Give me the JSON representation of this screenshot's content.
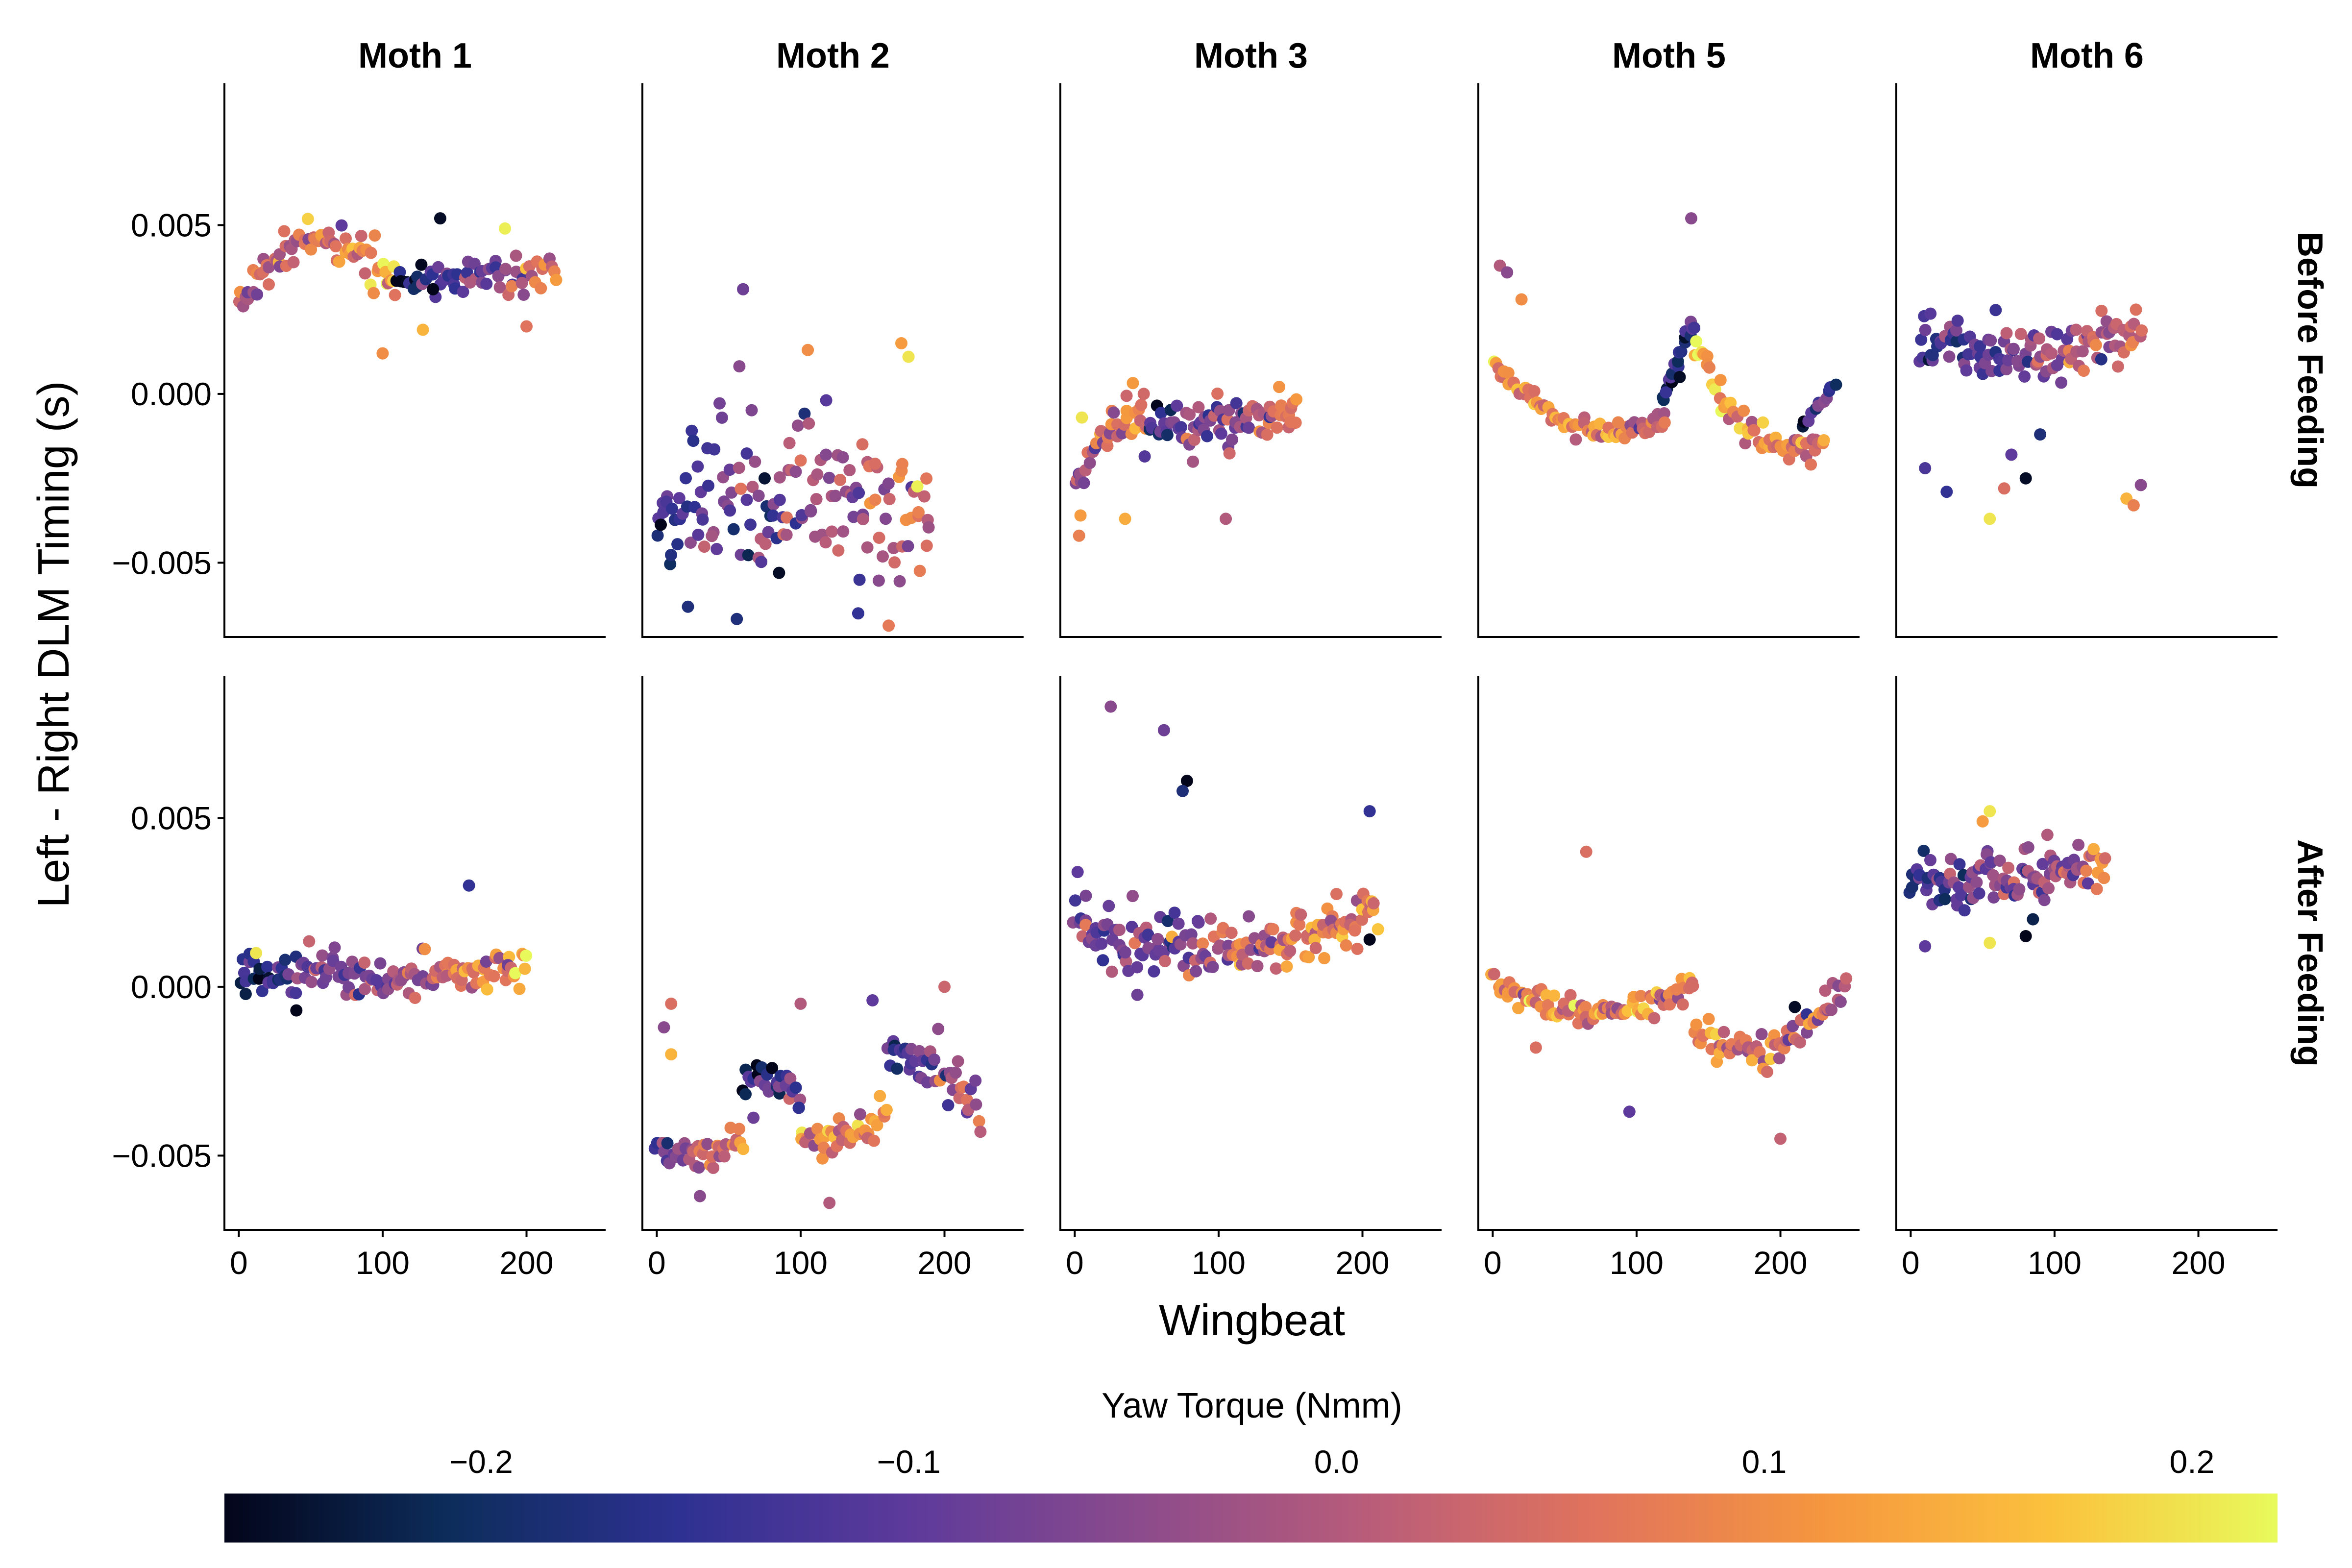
{
  "chart_data": {
    "type": "scatter",
    "layout": "faceted-grid",
    "ylabel": "Left - Right DLM Timing (s)",
    "xlabel": "Wingbeat",
    "columns": [
      "Moth 1",
      "Moth 2",
      "Moth 3",
      "Moth 5",
      "Moth 6"
    ],
    "rows": [
      "Before Feeding",
      "After Feeding"
    ],
    "xlim": [
      -10,
      255
    ],
    "ylim": [
      -0.0072,
      0.0092
    ],
    "x_ticks": [
      0,
      100,
      200
    ],
    "x_tick_labels": [
      "0",
      "100",
      "200"
    ],
    "y_ticks": [
      -0.005,
      0.0,
      0.005
    ],
    "y_tick_labels": [
      "−0.005",
      "0.000",
      "0.005"
    ],
    "grid": false,
    "colorbar": {
      "title": "Yaw Torque (Nmm)",
      "range": [
        -0.26,
        0.22
      ],
      "ticks": [
        -0.2,
        -0.1,
        0.0,
        0.1,
        0.2
      ],
      "tick_labels": [
        "−0.2",
        "−0.1",
        "0.0",
        "0.1",
        "0.2"
      ],
      "colormap": "thermal",
      "colormap_stops": [
        "#03051a",
        "#0d2d5c",
        "#2e3192",
        "#5d3a9b",
        "#8b4b8c",
        "#b85c7a",
        "#e0735d",
        "#f5963f",
        "#fbc13d",
        "#e8fa5b"
      ],
      "placement": "bottom"
    },
    "panels": [
      {
        "name": "Moth 1 Before Feeding",
        "row": 0,
        "col": 0,
        "series": [
          {
            "wingbeat_from": 0,
            "wingbeat_to": 110,
            "y_from": 0.0028,
            "y_mid": 0.0045,
            "y_to": 0.003,
            "spread": 0.0007,
            "yaw_from": 0.0,
            "yaw_to": 0.1,
            "count": 75
          },
          {
            "wingbeat_from": 110,
            "wingbeat_to": 220,
            "y_from": 0.0033,
            "y_mid": 0.0035,
            "y_to": 0.0037,
            "spread": 0.0005,
            "yaw_from": -0.2,
            "yaw_to": 0.05,
            "count": 65
          }
        ],
        "points": [
          {
            "x": 140,
            "y": 0.0052,
            "yaw": -0.25
          },
          {
            "x": 135,
            "y": 0.0031,
            "yaw": -0.26
          },
          {
            "x": 128,
            "y": 0.0019,
            "yaw": 0.15
          },
          {
            "x": 100,
            "y": 0.0012,
            "yaw": 0.1
          },
          {
            "x": 185,
            "y": 0.0049,
            "yaw": 0.21
          },
          {
            "x": 200,
            "y": 0.002,
            "yaw": 0.06
          }
        ]
      },
      {
        "name": "Moth 2 Before Feeding",
        "row": 0,
        "col": 1,
        "series": [
          {
            "wingbeat_from": 0,
            "wingbeat_to": 190,
            "y_from": -0.004,
            "y_mid": -0.003,
            "y_to": -0.0035,
            "spread": 0.0022,
            "yaw_from": -0.15,
            "yaw_to": 0.05,
            "count": 150
          }
        ],
        "points": [
          {
            "x": 60,
            "y": 0.0031,
            "yaw": -0.08
          },
          {
            "x": 170,
            "y": 0.0015,
            "yaw": 0.12
          },
          {
            "x": 175,
            "y": 0.0011,
            "yaw": 0.2
          },
          {
            "x": 105,
            "y": 0.0013,
            "yaw": 0.1
          },
          {
            "x": 140,
            "y": -0.0065,
            "yaw": -0.15
          },
          {
            "x": 85,
            "y": -0.0053,
            "yaw": -0.25
          },
          {
            "x": 75,
            "y": -0.0025,
            "yaw": -0.24
          }
        ]
      },
      {
        "name": "Moth 3 Before Feeding",
        "row": 0,
        "col": 2,
        "series": [
          {
            "wingbeat_from": 0,
            "wingbeat_to": 50,
            "y_from": -0.003,
            "y_mid": -0.001,
            "y_to": -0.0007,
            "spread": 0.0007,
            "yaw_from": -0.05,
            "yaw_to": 0.1,
            "count": 40
          },
          {
            "wingbeat_from": 50,
            "wingbeat_to": 155,
            "y_from": -0.0012,
            "y_mid": -0.0008,
            "y_to": -0.0006,
            "spread": 0.0008,
            "yaw_from": -0.15,
            "yaw_to": 0.08,
            "count": 85
          }
        ],
        "points": [
          {
            "x": 3,
            "y": -0.0042,
            "yaw": 0.08
          },
          {
            "x": 4,
            "y": -0.0036,
            "yaw": 0.12
          },
          {
            "x": 35,
            "y": -0.0037,
            "yaw": 0.14
          },
          {
            "x": 105,
            "y": -0.0037,
            "yaw": 0.0
          },
          {
            "x": 5,
            "y": -0.0007,
            "yaw": 0.2
          }
        ]
      },
      {
        "name": "Moth 5 Before Feeding",
        "row": 0,
        "col": 3,
        "series": [
          {
            "wingbeat_from": 0,
            "wingbeat_to": 120,
            "y_from": 0.0009,
            "y_mid": -0.0009,
            "y_to": -0.0008,
            "spread": 0.0003,
            "yaw_from": 0.1,
            "yaw_to": 0.05,
            "count": 70
          },
          {
            "wingbeat_from": 118,
            "wingbeat_to": 140,
            "y_from": -0.0003,
            "y_mid": 0.001,
            "y_to": 0.0022,
            "spread": 0.0003,
            "yaw_from": -0.22,
            "yaw_to": -0.1,
            "count": 20
          },
          {
            "wingbeat_from": 140,
            "wingbeat_to": 230,
            "y_from": 0.0015,
            "y_mid": -0.0012,
            "y_to": -0.0013,
            "spread": 0.0004,
            "yaw_from": 0.15,
            "yaw_to": 0.05,
            "count": 55
          },
          {
            "wingbeat_from": 215,
            "wingbeat_to": 238,
            "y_from": -0.001,
            "y_mid": -0.0003,
            "y_to": 0.0003,
            "spread": 0.0003,
            "yaw_from": -0.15,
            "yaw_to": -0.12,
            "count": 12
          }
        ],
        "points": [
          {
            "x": 138,
            "y": 0.0052,
            "yaw": -0.05
          },
          {
            "x": 5,
            "y": 0.0038,
            "yaw": 0.0
          },
          {
            "x": 10,
            "y": 0.0036,
            "yaw": -0.05
          },
          {
            "x": 20,
            "y": 0.0028,
            "yaw": 0.1
          },
          {
            "x": 130,
            "y": 0.0005,
            "yaw": -0.25
          }
        ]
      },
      {
        "name": "Moth 6 Before Feeding",
        "row": 0,
        "col": 4,
        "series": [
          {
            "wingbeat_from": 5,
            "wingbeat_to": 160,
            "y_from": 0.0015,
            "y_mid": 0.0012,
            "y_to": 0.0019,
            "spread": 0.0009,
            "yaw_from": -0.15,
            "yaw_to": 0.05,
            "count": 120
          }
        ],
        "points": [
          {
            "x": 10,
            "y": -0.0022,
            "yaw": -0.12
          },
          {
            "x": 25,
            "y": -0.0029,
            "yaw": -0.15
          },
          {
            "x": 55,
            "y": -0.0037,
            "yaw": 0.2
          },
          {
            "x": 70,
            "y": -0.0018,
            "yaw": -0.1
          },
          {
            "x": 80,
            "y": -0.0025,
            "yaw": -0.25
          },
          {
            "x": 90,
            "y": -0.0012,
            "yaw": -0.18
          },
          {
            "x": 65,
            "y": -0.0028,
            "yaw": 0.05
          },
          {
            "x": 150,
            "y": -0.0031,
            "yaw": 0.15
          },
          {
            "x": 155,
            "y": -0.0033,
            "yaw": 0.08
          },
          {
            "x": 160,
            "y": -0.0027,
            "yaw": -0.05
          }
        ]
      },
      {
        "name": "Moth 1 After Feeding",
        "row": 1,
        "col": 0,
        "series": [
          {
            "wingbeat_from": 0,
            "wingbeat_to": 200,
            "y_from": 0.0005,
            "y_mid": 0.0003,
            "y_to": 0.0006,
            "spread": 0.0006,
            "yaw_from": -0.15,
            "yaw_to": 0.1,
            "count": 140
          }
        ],
        "points": [
          {
            "x": 160,
            "y": 0.003,
            "yaw": -0.15
          },
          {
            "x": 40,
            "y": -0.0007,
            "yaw": -0.26
          },
          {
            "x": 12,
            "y": 0.001,
            "yaw": 0.2
          }
        ]
      },
      {
        "name": "Moth 2 After Feeding",
        "row": 1,
        "col": 1,
        "series": [
          {
            "wingbeat_from": 0,
            "wingbeat_to": 60,
            "y_from": -0.0048,
            "y_mid": -0.005,
            "y_to": -0.0045,
            "spread": 0.0006,
            "yaw_from": -0.1,
            "yaw_to": 0.1,
            "count": 40
          },
          {
            "wingbeat_from": 60,
            "wingbeat_to": 100,
            "y_from": -0.003,
            "y_mid": -0.0028,
            "y_to": -0.0035,
            "spread": 0.0006,
            "yaw_from": -0.2,
            "yaw_to": -0.1,
            "count": 30
          },
          {
            "wingbeat_from": 100,
            "wingbeat_to": 160,
            "y_from": -0.0042,
            "y_mid": -0.0045,
            "y_to": -0.0035,
            "spread": 0.0006,
            "yaw_from": 0.05,
            "yaw_to": 0.12,
            "count": 40
          },
          {
            "wingbeat_from": 160,
            "wingbeat_to": 225,
            "y_from": -0.002,
            "y_mid": -0.0025,
            "y_to": -0.0038,
            "spread": 0.0007,
            "yaw_from": -0.15,
            "yaw_to": 0.0,
            "count": 45
          }
        ],
        "points": [
          {
            "x": 10,
            "y": -0.0005,
            "yaw": 0.05
          },
          {
            "x": 5,
            "y": -0.0012,
            "yaw": -0.05
          },
          {
            "x": 10,
            "y": -0.002,
            "yaw": 0.15
          },
          {
            "x": 100,
            "y": -0.0005,
            "yaw": 0.0
          },
          {
            "x": 150,
            "y": -0.0004,
            "yaw": -0.1
          },
          {
            "x": 200,
            "y": 0.0,
            "yaw": 0.03
          },
          {
            "x": 120,
            "y": -0.0064,
            "yaw": 0.0
          },
          {
            "x": 30,
            "y": -0.0062,
            "yaw": -0.05
          }
        ]
      },
      {
        "name": "Moth 3 After Feeding",
        "row": 1,
        "col": 2,
        "series": [
          {
            "wingbeat_from": 0,
            "wingbeat_to": 210,
            "y_from": 0.0018,
            "y_mid": 0.0011,
            "y_to": 0.0023,
            "spread": 0.0008,
            "yaw_from": -0.1,
            "yaw_to": 0.1,
            "count": 170
          }
        ],
        "points": [
          {
            "x": 25,
            "y": 0.0083,
            "yaw": -0.05
          },
          {
            "x": 62,
            "y": 0.0076,
            "yaw": -0.08
          },
          {
            "x": 78,
            "y": 0.0061,
            "yaw": -0.26
          },
          {
            "x": 75,
            "y": 0.0058,
            "yaw": -0.18
          },
          {
            "x": 205,
            "y": 0.0052,
            "yaw": -0.15
          },
          {
            "x": 2,
            "y": 0.0034,
            "yaw": -0.1
          },
          {
            "x": 205,
            "y": 0.0014,
            "yaw": -0.26
          }
        ]
      },
      {
        "name": "Moth 5 After Feeding",
        "row": 1,
        "col": 3,
        "series": [
          {
            "wingbeat_from": 0,
            "wingbeat_to": 140,
            "y_from": 0.0002,
            "y_mid": -0.0008,
            "y_to": 0.0001,
            "spread": 0.0004,
            "yaw_from": 0.12,
            "yaw_to": 0.05,
            "count": 90
          },
          {
            "wingbeat_from": 140,
            "wingbeat_to": 245,
            "y_from": -0.0012,
            "y_mid": -0.0018,
            "y_to": 0.0001,
            "spread": 0.0006,
            "yaw_from": 0.1,
            "yaw_to": 0.0,
            "count": 70
          }
        ],
        "points": [
          {
            "x": 65,
            "y": 0.004,
            "yaw": 0.05
          },
          {
            "x": 95,
            "y": -0.0037,
            "yaw": -0.1
          },
          {
            "x": 200,
            "y": -0.0045,
            "yaw": 0.02
          },
          {
            "x": 30,
            "y": -0.0018,
            "yaw": 0.05
          },
          {
            "x": 210,
            "y": -0.0006,
            "yaw": -0.25
          }
        ]
      },
      {
        "name": "Moth 6 After Feeding",
        "row": 1,
        "col": 4,
        "series": [
          {
            "wingbeat_from": 0,
            "wingbeat_to": 135,
            "y_from": 0.0031,
            "y_mid": 0.0033,
            "y_to": 0.0035,
            "spread": 0.0008,
            "yaw_from": -0.15,
            "yaw_to": 0.05,
            "count": 110
          }
        ],
        "points": [
          {
            "x": 55,
            "y": 0.0052,
            "yaw": 0.2
          },
          {
            "x": 50,
            "y": 0.0049,
            "yaw": 0.12
          },
          {
            "x": 55,
            "y": 0.0013,
            "yaw": 0.2
          },
          {
            "x": 80,
            "y": 0.0015,
            "yaw": -0.26
          },
          {
            "x": 85,
            "y": 0.002,
            "yaw": -0.22
          },
          {
            "x": 10,
            "y": 0.0012,
            "yaw": -0.1
          },
          {
            "x": 95,
            "y": 0.0045,
            "yaw": 0.0
          }
        ]
      }
    ]
  }
}
